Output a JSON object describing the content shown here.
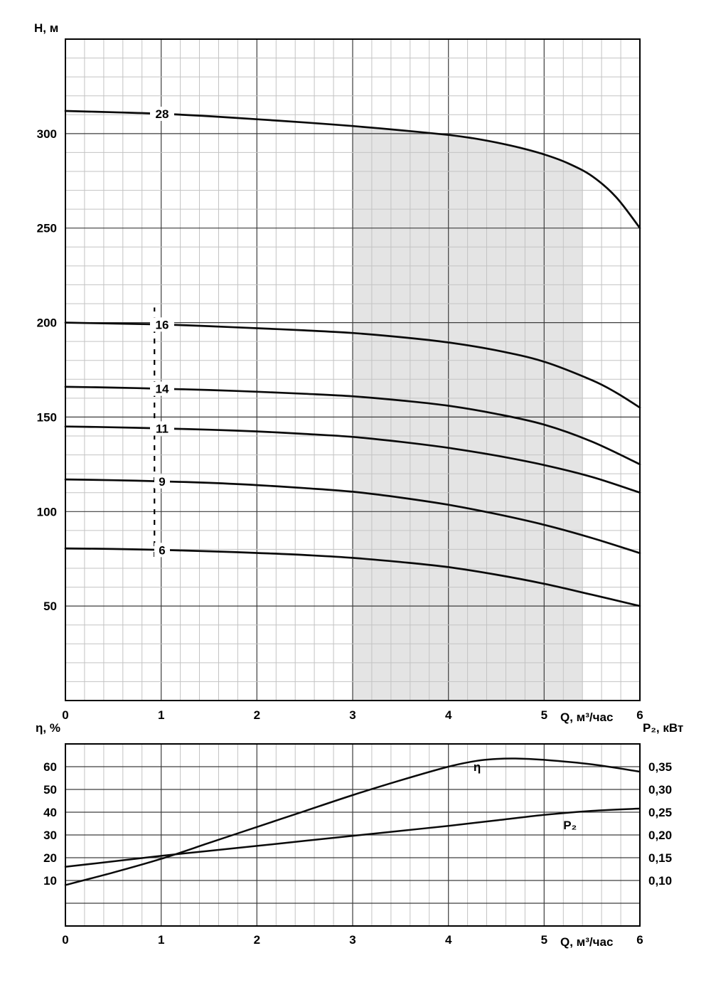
{
  "chart_data": [
    {
      "id": "head-vs-flow",
      "type": "line",
      "y_axis_title": "H, м",
      "x_axis_title": "Q, м³/час",
      "x_range": [
        0,
        6
      ],
      "y_range": [
        0,
        350
      ],
      "x_major_step": 1,
      "x_minor_step": 0.2,
      "y_major_step": 50,
      "y_minor_step": 10,
      "x_ticks": [
        {
          "value": 0,
          "label": "0"
        },
        {
          "value": 1,
          "label": "1"
        },
        {
          "value": 2,
          "label": "2"
        },
        {
          "value": 3,
          "label": "3"
        },
        {
          "value": 4,
          "label": "4"
        },
        {
          "value": 5,
          "label": "5"
        },
        {
          "value": 6,
          "label": "6"
        }
      ],
      "y_ticks": [
        {
          "value": 50,
          "label": "50"
        },
        {
          "value": 100,
          "label": "100"
        },
        {
          "value": 150,
          "label": "150"
        },
        {
          "value": 200,
          "label": "200"
        },
        {
          "value": 250,
          "label": "250"
        },
        {
          "value": 300,
          "label": "300"
        }
      ],
      "recommended_range": {
        "x_from": 3,
        "x_to": 5.4,
        "bounded_by": "28",
        "color": "#e4e4e4"
      },
      "guide_line": {
        "x": 0.93,
        "y_from": 76,
        "y_to": 208
      },
      "series": [
        {
          "name": "28",
          "label": "28",
          "label_x": 1.01,
          "points": [
            [
              0,
              312
            ],
            [
              0.5,
              311.3
            ],
            [
              1,
              310.5
            ],
            [
              1.5,
              309.2
            ],
            [
              2,
              307.6
            ],
            [
              2.5,
              305.9
            ],
            [
              3,
              304
            ],
            [
              3.5,
              301.8
            ],
            [
              4,
              299.3
            ],
            [
              4.25,
              297.6
            ],
            [
              4.5,
              295.3
            ],
            [
              4.75,
              292.5
            ],
            [
              5,
              289
            ],
            [
              5.25,
              284.3
            ],
            [
              5.5,
              277.5
            ],
            [
              5.75,
              266.5
            ],
            [
              6,
              250
            ]
          ]
        },
        {
          "name": "16",
          "label": "16",
          "label_x": 1.01,
          "points": [
            [
              0,
              200
            ],
            [
              0.5,
              199.5
            ],
            [
              1,
              199
            ],
            [
              1.5,
              198.1
            ],
            [
              2,
              197
            ],
            [
              2.5,
              195.9
            ],
            [
              3,
              194.5
            ],
            [
              3.5,
              192.3
            ],
            [
              4,
              189.5
            ],
            [
              4.5,
              185.3
            ],
            [
              5,
              179.3
            ],
            [
              5.5,
              169.5
            ],
            [
              5.75,
              163
            ],
            [
              6,
              155
            ]
          ]
        },
        {
          "name": "14",
          "label": "14",
          "label_x": 1.01,
          "points": [
            [
              0,
              166
            ],
            [
              0.5,
              165.6
            ],
            [
              1,
              165
            ],
            [
              1.5,
              164.3
            ],
            [
              2,
              163.4
            ],
            [
              2.5,
              162.3
            ],
            [
              3,
              161
            ],
            [
              3.5,
              158.8
            ],
            [
              4,
              156
            ],
            [
              4.5,
              151.7
            ],
            [
              5,
              146
            ],
            [
              5.5,
              137
            ],
            [
              6,
              125
            ]
          ]
        },
        {
          "name": "11",
          "label": "11",
          "label_x": 1.01,
          "points": [
            [
              0,
              145
            ],
            [
              0.5,
              144.6
            ],
            [
              1,
              144
            ],
            [
              1.5,
              143.3
            ],
            [
              2,
              142.4
            ],
            [
              2.5,
              141.1
            ],
            [
              3,
              139.5
            ],
            [
              3.5,
              136.9
            ],
            [
              4,
              133.7
            ],
            [
              4.5,
              129.6
            ],
            [
              5,
              124.6
            ],
            [
              5.5,
              118.3
            ],
            [
              6,
              110
            ]
          ]
        },
        {
          "name": "9",
          "label": "9",
          "label_x": 1.01,
          "points": [
            [
              0,
              117
            ],
            [
              0.5,
              116.6
            ],
            [
              1,
              116
            ],
            [
              1.5,
              115.2
            ],
            [
              2,
              114
            ],
            [
              2.5,
              112.4
            ],
            [
              3,
              110.5
            ],
            [
              3.5,
              107.4
            ],
            [
              4,
              103.6
            ],
            [
              4.5,
              98.7
            ],
            [
              5,
              93
            ],
            [
              5.5,
              86
            ],
            [
              6,
              78
            ]
          ]
        },
        {
          "name": "6",
          "label": "6",
          "label_x": 1.01,
          "points": [
            [
              0,
              80.5
            ],
            [
              0.5,
              80.2
            ],
            [
              1,
              79.7
            ],
            [
              1.5,
              79
            ],
            [
              2,
              78.1
            ],
            [
              2.5,
              77
            ],
            [
              3,
              75.5
            ],
            [
              3.5,
              73.3
            ],
            [
              4,
              70.6
            ],
            [
              4.5,
              66.6
            ],
            [
              5,
              61.8
            ],
            [
              5.5,
              56
            ],
            [
              6,
              50
            ]
          ]
        }
      ]
    },
    {
      "id": "efficiency-power-vs-flow",
      "type": "line",
      "left_axis_title": "η, %",
      "right_axis_title": "P₂, кВт",
      "x_axis_title": "Q, м³/час",
      "x_range": [
        0,
        6
      ],
      "left_range": [
        -10,
        70
      ],
      "right_range": [
        0,
        0.4
      ],
      "x_major_step": 1,
      "x_minor_step": 0.2,
      "left_grid_step": 10,
      "x_ticks": [
        {
          "value": 0,
          "label": "0"
        },
        {
          "value": 1,
          "label": "1"
        },
        {
          "value": 2,
          "label": "2"
        },
        {
          "value": 3,
          "label": "3"
        },
        {
          "value": 4,
          "label": "4"
        },
        {
          "value": 5,
          "label": "5"
        },
        {
          "value": 6,
          "label": "6"
        }
      ],
      "left_ticks": [
        {
          "value": 10,
          "label": "10"
        },
        {
          "value": 20,
          "label": "20"
        },
        {
          "value": 30,
          "label": "30"
        },
        {
          "value": 40,
          "label": "40"
        },
        {
          "value": 50,
          "label": "50"
        },
        {
          "value": 60,
          "label": "60"
        }
      ],
      "right_ticks": [
        {
          "value": 0.1,
          "label": "0,10"
        },
        {
          "value": 0.15,
          "label": "0,15"
        },
        {
          "value": 0.2,
          "label": "0,20"
        },
        {
          "value": 0.25,
          "label": "0,25"
        },
        {
          "value": 0.3,
          "label": "0,30"
        },
        {
          "value": 0.35,
          "label": "0,35"
        }
      ],
      "series": [
        {
          "name": "eta",
          "axis": "left",
          "label": "η",
          "label_pos": [
            4.3,
            60
          ],
          "points": [
            [
              0,
              8
            ],
            [
              0.5,
              13.5
            ],
            [
              1,
              19.5
            ],
            [
              1.5,
              26.5
            ],
            [
              2,
              33.5
            ],
            [
              2.5,
              40.5
            ],
            [
              3,
              47.5
            ],
            [
              3.5,
              54
            ],
            [
              4,
              60
            ],
            [
              4.3,
              62.6
            ],
            [
              4.5,
              63.4
            ],
            [
              4.7,
              63.6
            ],
            [
              5,
              63
            ],
            [
              5.5,
              61
            ],
            [
              6,
              57.8
            ]
          ]
        },
        {
          "name": "P2",
          "axis": "right",
          "label": "P₂",
          "label_pos": [
            5.27,
            0.222
          ],
          "points": [
            [
              0,
              0.13
            ],
            [
              0.5,
              0.142
            ],
            [
              1,
              0.154
            ],
            [
              1.5,
              0.165
            ],
            [
              2,
              0.176
            ],
            [
              2.5,
              0.187
            ],
            [
              3,
              0.198
            ],
            [
              3.5,
              0.209
            ],
            [
              4,
              0.22
            ],
            [
              4.5,
              0.232
            ],
            [
              5,
              0.244
            ],
            [
              5.5,
              0.253
            ],
            [
              6,
              0.258
            ]
          ]
        }
      ]
    }
  ]
}
